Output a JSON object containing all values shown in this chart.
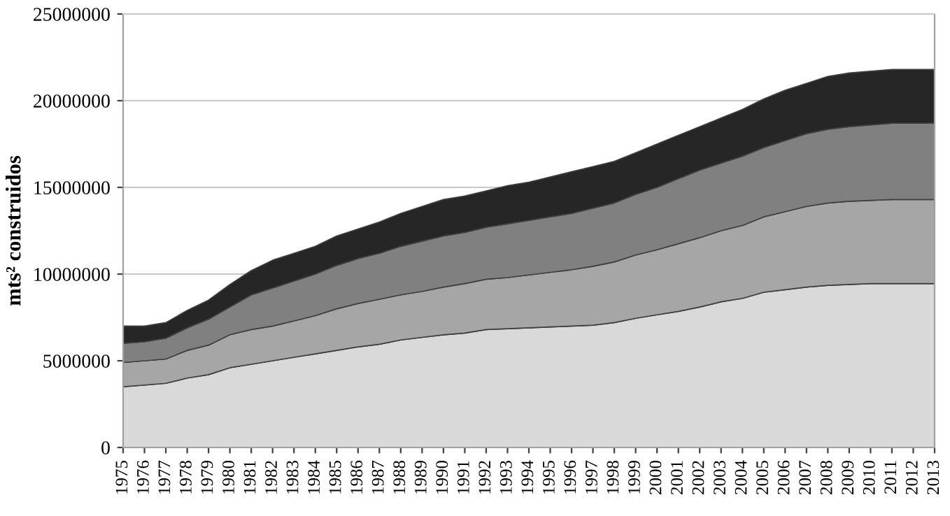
{
  "chart_data": {
    "type": "area",
    "stacked": true,
    "ylabel": "mts² construidos",
    "categories": [
      "1975",
      "1976",
      "1977",
      "1978",
      "1979",
      "1980",
      "1981",
      "1982",
      "1983",
      "1984",
      "1985",
      "1986",
      "1987",
      "1988",
      "1989",
      "1990",
      "1991",
      "1992",
      "1993",
      "1994",
      "1995",
      "1996",
      "1997",
      "1998",
      "1999",
      "2000",
      "2001",
      "2002",
      "2003",
      "2004",
      "2005",
      "2006",
      "2007",
      "2008",
      "2009",
      "2010",
      "2011",
      "2012",
      "2013"
    ],
    "series": [
      {
        "color": "#d9d9d9",
        "values": [
          3500000,
          3600000,
          3700000,
          4000000,
          4200000,
          4600000,
          4800000,
          5000000,
          5200000,
          5400000,
          5600000,
          5800000,
          5950000,
          6200000,
          6350000,
          6500000,
          6600000,
          6800000,
          6850000,
          6900000,
          6950000,
          7000000,
          7050000,
          7200000,
          7450000,
          7650000,
          7850000,
          8100000,
          8400000,
          8600000,
          8950000,
          9100000,
          9250000,
          9350000,
          9400000,
          9450000,
          9450000,
          9450000,
          9450000
        ]
      },
      {
        "color": "#a6a6a6",
        "values": [
          1400000,
          1400000,
          1400000,
          1600000,
          1700000,
          1900000,
          2000000,
          2000000,
          2100000,
          2200000,
          2400000,
          2500000,
          2600000,
          2600000,
          2650000,
          2750000,
          2850000,
          2900000,
          2950000,
          3050000,
          3150000,
          3250000,
          3400000,
          3500000,
          3650000,
          3750000,
          3900000,
          4000000,
          4100000,
          4200000,
          4350000,
          4500000,
          4650000,
          4750000,
          4800000,
          4800000,
          4850000,
          4850000,
          4850000
        ]
      },
      {
        "color": "#808080",
        "values": [
          1100000,
          1100000,
          1200000,
          1300000,
          1500000,
          1600000,
          2000000,
          2200000,
          2300000,
          2400000,
          2500000,
          2600000,
          2650000,
          2800000,
          2900000,
          2950000,
          2950000,
          3000000,
          3100000,
          3150000,
          3200000,
          3250000,
          3350000,
          3400000,
          3500000,
          3600000,
          3750000,
          3900000,
          3900000,
          4000000,
          4000000,
          4100000,
          4200000,
          4250000,
          4300000,
          4350000,
          4400000,
          4400000,
          4400000
        ]
      },
      {
        "color": "#262626",
        "values": [
          1000000,
          900000,
          900000,
          1000000,
          1100000,
          1300000,
          1400000,
          1600000,
          1600000,
          1600000,
          1700000,
          1700000,
          1800000,
          1900000,
          2000000,
          2100000,
          2100000,
          2100000,
          2200000,
          2200000,
          2300000,
          2400000,
          2400000,
          2400000,
          2400000,
          2500000,
          2500000,
          2500000,
          2600000,
          2700000,
          2800000,
          2900000,
          2900000,
          3050000,
          3100000,
          3100000,
          3100000,
          3100000,
          3100000
        ]
      }
    ],
    "ylim": [
      0,
      25000000
    ],
    "yticks": [
      0,
      5000000,
      10000000,
      15000000,
      20000000,
      25000000
    ],
    "grid": "y",
    "legend": false
  }
}
